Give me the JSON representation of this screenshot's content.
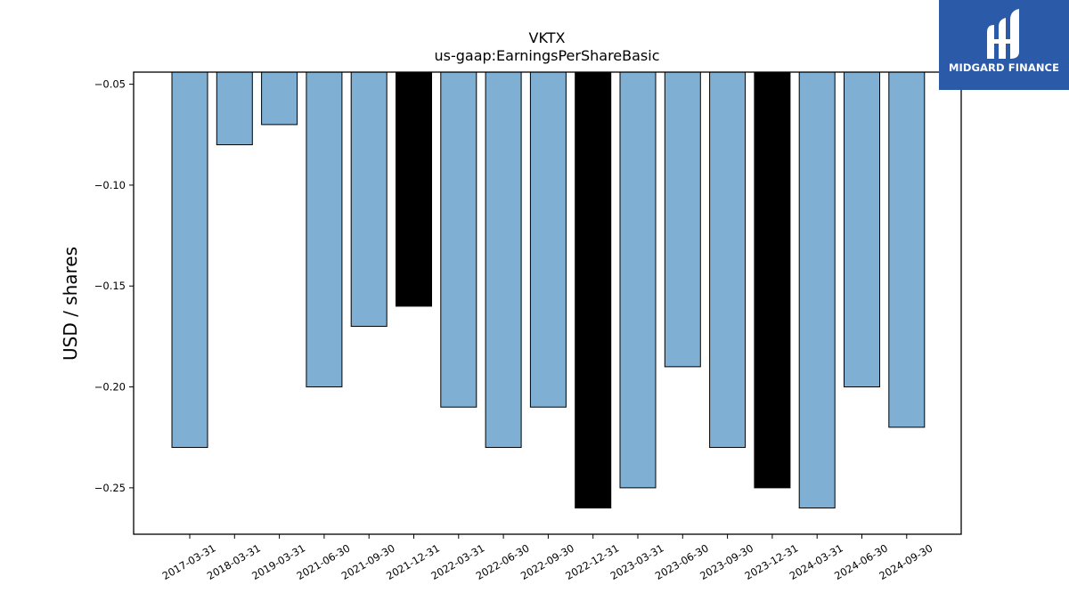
{
  "chart_data": {
    "type": "bar",
    "title": "VKTX",
    "subtitle": "us-gaap:EarningsPerShareBasic",
    "xlabel": "",
    "ylabel": "USD / shares",
    "ylim": [
      -0.273,
      -0.044
    ],
    "yticks": [
      -0.05,
      -0.1,
      -0.15,
      -0.2,
      -0.25
    ],
    "ytick_labels": [
      "−0.05",
      "−0.10",
      "−0.15",
      "−0.20",
      "−0.25"
    ],
    "grid": false,
    "categories": [
      "2017-03-31",
      "2018-03-31",
      "2019-03-31",
      "2021-06-30",
      "2021-09-30",
      "2021-12-31",
      "2022-03-31",
      "2022-06-30",
      "2022-09-30",
      "2022-12-31",
      "2023-03-31",
      "2023-06-30",
      "2023-09-30",
      "2023-12-31",
      "2024-03-31",
      "2024-06-30",
      "2024-09-30"
    ],
    "values": [
      -0.23,
      -0.08,
      -0.07,
      -0.2,
      -0.17,
      -0.16,
      -0.21,
      -0.23,
      -0.21,
      -0.26,
      -0.25,
      -0.19,
      -0.23,
      -0.25,
      -0.26,
      -0.2,
      -0.22
    ],
    "highlighted": [
      "2021-12-31",
      "2022-12-31",
      "2023-12-31"
    ],
    "colors": {
      "bar": "#7fafd3",
      "highlight": "#000000",
      "edge": "#000000"
    }
  },
  "watermark": {
    "text": "MIDGARD FINANCE",
    "background": "#2a5aa8"
  }
}
